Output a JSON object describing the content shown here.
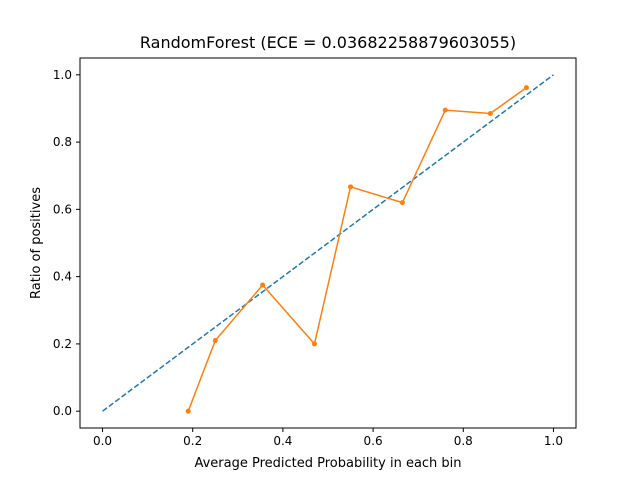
{
  "chart_data": {
    "type": "line",
    "title": "RandomForest (ECE = 0.03682258879603055)",
    "xlabel": "Average Predicted Probability in each bin",
    "ylabel": "Ratio of positives",
    "xlim": [
      -0.05,
      1.05
    ],
    "ylim": [
      -0.05,
      1.05
    ],
    "x_ticks": [
      "0.0",
      "0.2",
      "0.4",
      "0.6",
      "0.8",
      "1.0"
    ],
    "y_ticks": [
      "0.0",
      "0.2",
      "0.4",
      "0.6",
      "0.8",
      "1.0"
    ],
    "grid": false,
    "series": [
      {
        "style": "dashed",
        "color": "#1f77b4",
        "x": [
          0.0,
          1.0
        ],
        "y": [
          0.0,
          1.0
        ]
      },
      {
        "style": "line-with-dot-markers",
        "color": "#ff7f0e",
        "x": [
          0.19,
          0.25,
          0.355,
          0.47,
          0.55,
          0.665,
          0.76,
          0.86,
          0.94
        ],
        "y": [
          0.0,
          0.21,
          0.375,
          0.2,
          0.667,
          0.62,
          0.895,
          0.885,
          0.962
        ]
      }
    ]
  }
}
